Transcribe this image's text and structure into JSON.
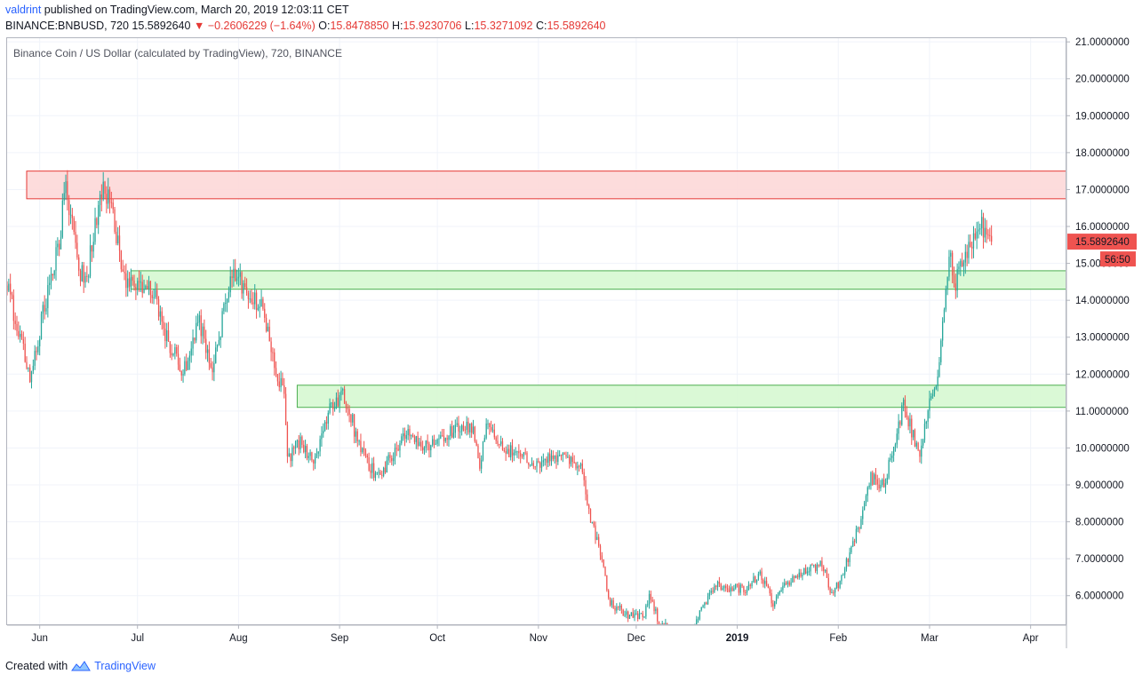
{
  "header": {
    "user": "valdrint",
    "published": "published on TradingView.com, March 20, 2019 12:03:11 CET",
    "symbol": "BINANCE:BNBUSD, 720",
    "last": "15.5892640",
    "change_arrow": "▼",
    "change": "−0.2606229 (−1.64%)",
    "o_label": "O:",
    "o": "15.8478850",
    "h_label": "H:",
    "h": "15.9230706",
    "l_label": "L:",
    "l": "15.3271092",
    "c_label": "C:",
    "c": "15.5892640"
  },
  "legend": "Binance Coin / US Dollar (calculated by TradingView), 720, BINANCE",
  "footer": {
    "created_with": "Created with",
    "brand": "TradingView",
    "logo_icon": "tradingview-logo-icon"
  },
  "colors": {
    "up": "#26a69a",
    "down": "#ef5350",
    "resistance_fill": "#fdd8d8",
    "resistance_stroke": "#e53935",
    "support_fill": "#d6f8d2",
    "support_stroke": "#4caf50",
    "link": "#2962ff"
  },
  "chart_data": {
    "type": "candlestick",
    "title": "Binance Coin / US Dollar (calculated by TradingView), 720, BINANCE",
    "interval": "720",
    "y_axis": {
      "ylim": [
        5.2,
        21.1
      ],
      "ticks": [
        "6.0000000",
        "7.0000000",
        "8.0000000",
        "9.0000000",
        "10.0000000",
        "11.0000000",
        "12.0000000",
        "13.0000000",
        "14.0000000",
        "15.0000000",
        "16.0000000",
        "17.0000000",
        "18.0000000",
        "19.0000000",
        "20.0000000",
        "21.0000000"
      ]
    },
    "x_axis": {
      "range": [
        "2018-05-22",
        "2019-04-12"
      ],
      "ticks": [
        {
          "date": "2018-06-01",
          "label": "Jun"
        },
        {
          "date": "2018-07-01",
          "label": "Jul"
        },
        {
          "date": "2018-08-01",
          "label": "Aug"
        },
        {
          "date": "2018-09-01",
          "label": "Sep"
        },
        {
          "date": "2018-10-01",
          "label": "Oct"
        },
        {
          "date": "2018-11-01",
          "label": "Nov"
        },
        {
          "date": "2018-12-01",
          "label": "Dec"
        },
        {
          "date": "2019-01-01",
          "label": "2019"
        },
        {
          "date": "2019-02-01",
          "label": "Feb"
        },
        {
          "date": "2019-03-01",
          "label": "Mar"
        },
        {
          "date": "2019-04-01",
          "label": "Apr"
        }
      ]
    },
    "price_label": "15.5892640",
    "countdown_label": "56:50",
    "zones": [
      {
        "kind": "resistance",
        "from": "2018-05-28",
        "to": "2019-04-12",
        "low": 16.75,
        "high": 17.5
      },
      {
        "kind": "support",
        "from": "2018-06-29",
        "to": "2019-04-12",
        "low": 14.3,
        "high": 14.8
      },
      {
        "kind": "support",
        "from": "2018-08-19",
        "to": "2019-04-12",
        "low": 11.1,
        "high": 11.7
      }
    ],
    "price_path": [
      [
        "2018-05-22",
        14.4
      ],
      [
        "2018-05-27",
        12.6
      ],
      [
        "2018-05-29",
        11.8
      ],
      [
        "2018-06-01",
        13.2
      ],
      [
        "2018-06-04",
        14.5
      ],
      [
        "2018-06-07",
        15.6
      ],
      [
        "2018-06-09",
        17.2
      ],
      [
        "2018-06-11",
        16.0
      ],
      [
        "2018-06-13",
        14.6
      ],
      [
        "2018-06-16",
        14.9
      ],
      [
        "2018-06-19",
        16.6
      ],
      [
        "2018-06-21",
        17.1
      ],
      [
        "2018-06-24",
        16.0
      ],
      [
        "2018-06-27",
        14.6
      ],
      [
        "2018-07-01",
        14.5
      ],
      [
        "2018-07-06",
        14.2
      ],
      [
        "2018-07-10",
        13.0
      ],
      [
        "2018-07-15",
        12.0
      ],
      [
        "2018-07-20",
        13.4
      ],
      [
        "2018-07-24",
        12.0
      ],
      [
        "2018-07-28",
        14.0
      ],
      [
        "2018-07-31",
        14.8
      ],
      [
        "2018-08-04",
        14.0
      ],
      [
        "2018-08-08",
        13.9
      ],
      [
        "2018-08-12",
        12.2
      ],
      [
        "2018-08-15",
        11.5
      ],
      [
        "2018-08-16",
        9.6
      ],
      [
        "2018-08-20",
        10.2
      ],
      [
        "2018-08-24",
        9.6
      ],
      [
        "2018-08-29",
        11.0
      ],
      [
        "2018-09-02",
        11.4
      ],
      [
        "2018-09-04",
        11.1
      ],
      [
        "2018-09-06",
        10.3
      ],
      [
        "2018-09-10",
        9.5
      ],
      [
        "2018-09-13",
        9.2
      ],
      [
        "2018-09-18",
        10.0
      ],
      [
        "2018-09-22",
        10.5
      ],
      [
        "2018-09-27",
        10.0
      ],
      [
        "2018-10-02",
        10.2
      ],
      [
        "2018-10-08",
        10.6
      ],
      [
        "2018-10-12",
        10.4
      ],
      [
        "2018-10-14",
        9.6
      ],
      [
        "2018-10-16",
        10.6
      ],
      [
        "2018-10-20",
        10.0
      ],
      [
        "2018-10-25",
        9.9
      ],
      [
        "2018-11-01",
        9.6
      ],
      [
        "2018-11-05",
        9.7
      ],
      [
        "2018-11-08",
        9.9
      ],
      [
        "2018-11-14",
        9.5
      ],
      [
        "2018-11-17",
        8.1
      ],
      [
        "2018-11-20",
        7.2
      ],
      [
        "2018-11-23",
        5.8
      ],
      [
        "2018-11-28",
        5.5
      ],
      [
        "2018-12-03",
        5.4
      ],
      [
        "2018-12-05",
        6.0
      ],
      [
        "2018-12-08",
        5.3
      ],
      [
        "2018-12-12",
        5.0
      ],
      [
        "2018-12-18",
        5.0
      ],
      [
        "2018-12-22",
        5.8
      ],
      [
        "2018-12-25",
        6.3
      ],
      [
        "2018-12-30",
        6.2
      ],
      [
        "2019-01-04",
        6.2
      ],
      [
        "2019-01-08",
        6.6
      ],
      [
        "2019-01-12",
        5.8
      ],
      [
        "2019-01-16",
        6.3
      ],
      [
        "2019-01-21",
        6.6
      ],
      [
        "2019-01-27",
        6.9
      ],
      [
        "2019-01-30",
        6.0
      ],
      [
        "2019-02-02",
        6.5
      ],
      [
        "2019-02-07",
        7.8
      ],
      [
        "2019-02-11",
        9.2
      ],
      [
        "2019-02-15",
        9.0
      ],
      [
        "2019-02-18",
        10.0
      ],
      [
        "2019-02-21",
        11.2
      ],
      [
        "2019-02-24",
        10.3
      ],
      [
        "2019-02-26",
        9.6
      ],
      [
        "2019-03-01",
        11.3
      ],
      [
        "2019-03-03",
        11.6
      ],
      [
        "2019-03-05",
        13.5
      ],
      [
        "2019-03-07",
        15.3
      ],
      [
        "2019-03-09",
        14.5
      ],
      [
        "2019-03-11",
        15.2
      ],
      [
        "2019-03-13",
        15.4
      ],
      [
        "2019-03-16",
        16.1
      ],
      [
        "2019-03-18",
        15.9
      ],
      [
        "2019-03-20",
        15.59
      ]
    ]
  }
}
